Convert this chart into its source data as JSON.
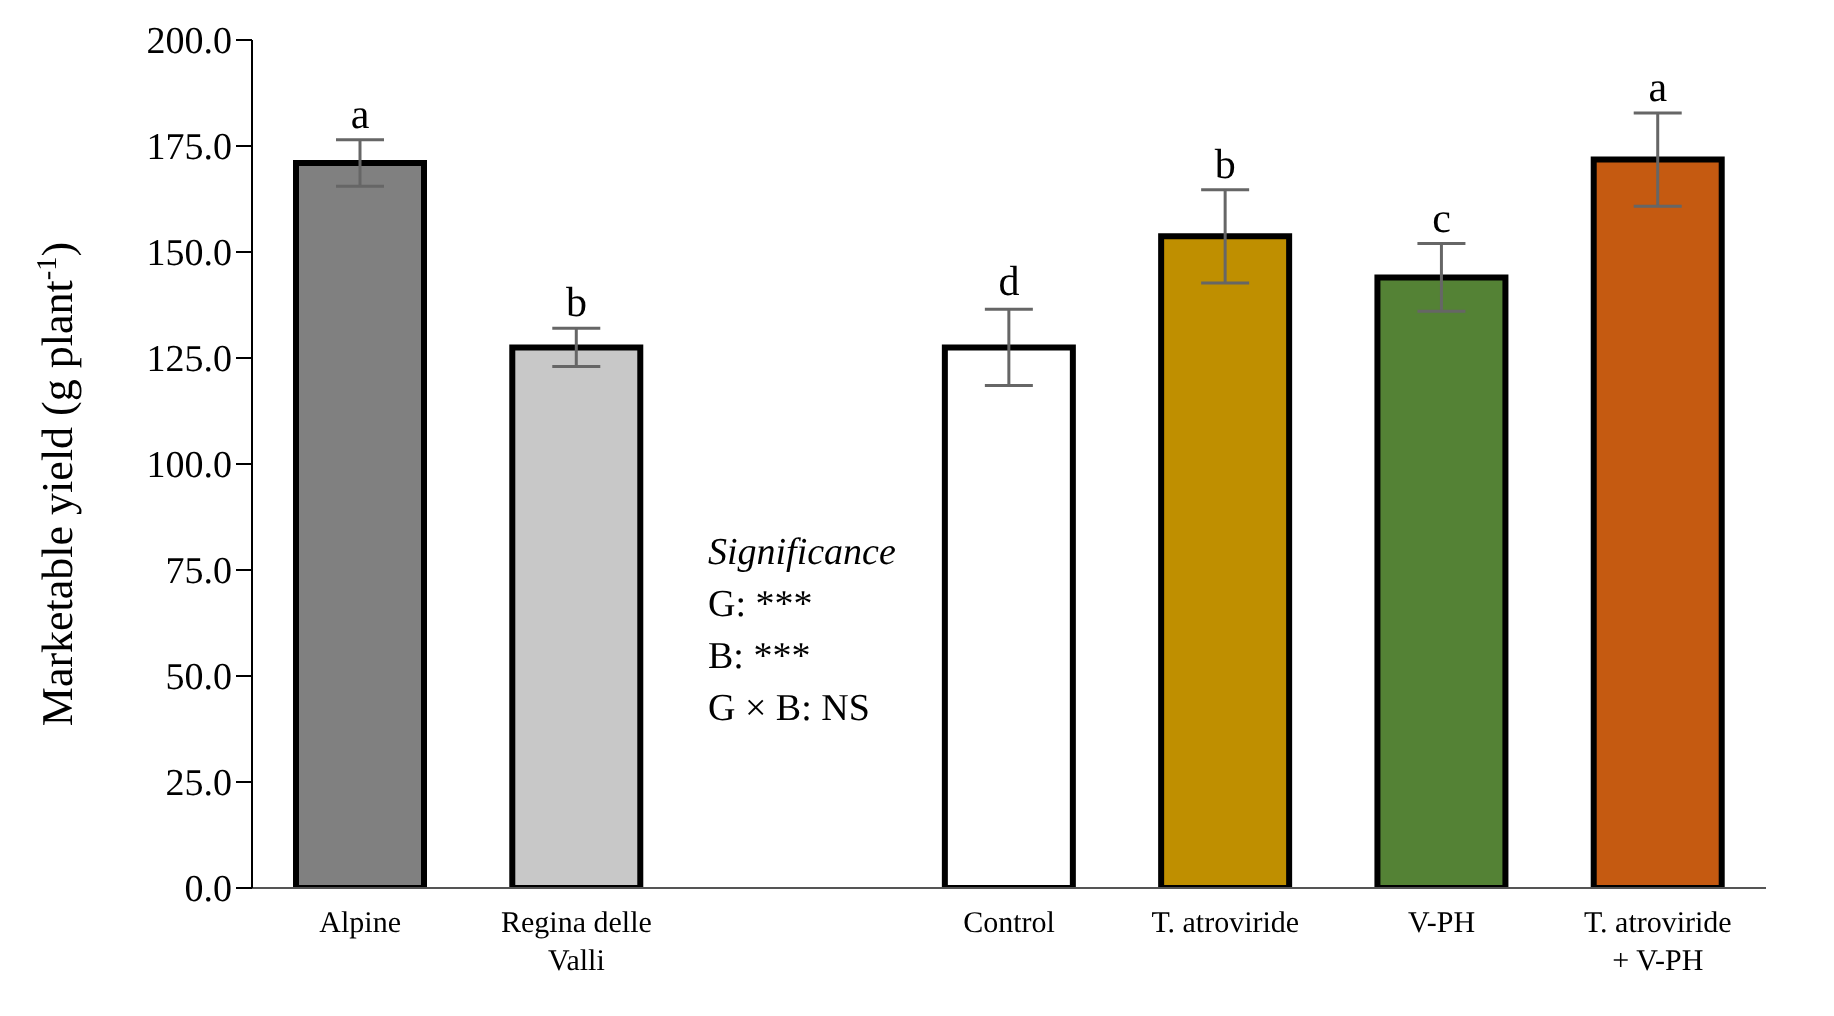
{
  "chart_data": {
    "type": "bar",
    "ylabel": "Marketable yield (g plant$^{-1}$)",
    "categories": [
      "Alpine",
      "Regina delle Valli",
      null,
      "Control",
      "T. atroviride",
      "V-PH",
      "T. atroviride + V-PH"
    ],
    "values": [
      171.0,
      127.5,
      null,
      127.5,
      153.7,
      144.0,
      171.8
    ],
    "errors": [
      5.5,
      4.5,
      null,
      9,
      11,
      8,
      11
    ],
    "colors": [
      "#808080",
      "#c8c8c8",
      "#ffffff",
      "#ffffff",
      "#bf8f00",
      "#548235",
      "#c55a11"
    ],
    "ylim": [
      0,
      200
    ],
    "yticks": [
      {
        "value": 0,
        "label": "0.0"
      },
      {
        "value": 25,
        "label": "25.0"
      },
      {
        "value": 50,
        "label": "50.0"
      },
      {
        "value": 75,
        "label": "75.0"
      },
      {
        "value": 100,
        "label": "100.0"
      },
      {
        "value": 125,
        "label": "125.0"
      },
      {
        "value": 150,
        "label": "150.0"
      },
      {
        "value": 175,
        "label": "175.0"
      },
      {
        "value": 200,
        "label": "200.0"
      }
    ],
    "annotations": [
      {
        "text": "a",
        "x": "Alpine",
        "y": 176.5
      },
      {
        "text": "b",
        "x": "Regina delle Valli",
        "y": 132
      },
      {
        "text": "d",
        "x": "Control",
        "y": 137
      },
      {
        "text": "b",
        "x": "T. atroviride",
        "y": 164.7
      },
      {
        "text": "c",
        "x": "V-PH",
        "y": 152
      },
      {
        "text": "a",
        "x": "T. atroviride + V-PH",
        "y": 182.8
      },
      "Significance",
      "G: ***",
      "B: ***",
      "G × B: NS"
    ],
    "grid": false,
    "legend": false
  }
}
